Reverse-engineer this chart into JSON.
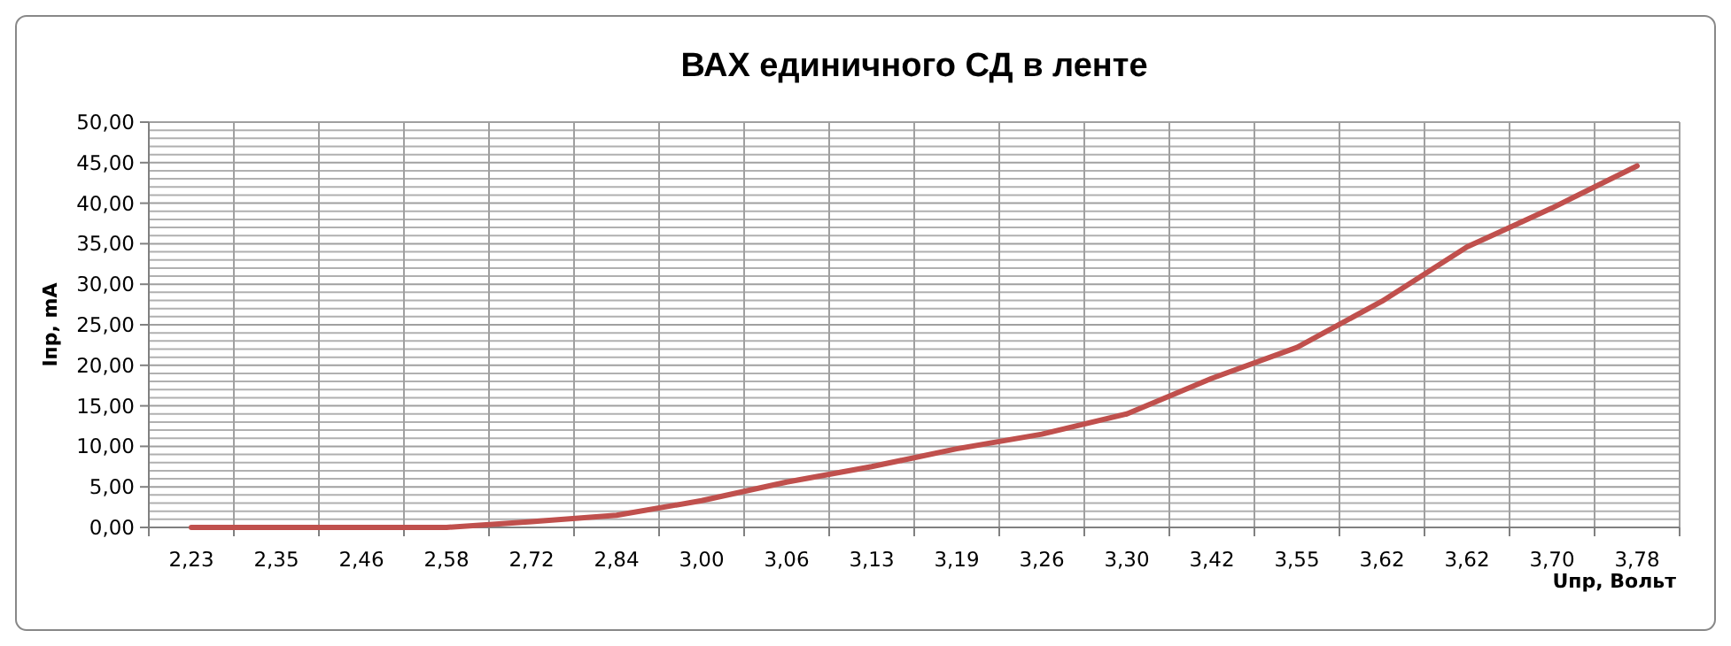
{
  "chart_data": {
    "type": "line",
    "title": "ВАХ единичного СД в ленте",
    "xlabel": "Uпр, Вольт",
    "ylabel": "Iпр, mA",
    "categories": [
      "2,23",
      "2,35",
      "2,46",
      "2,58",
      "2,72",
      "2,84",
      "3,00",
      "3,06",
      "3,13",
      "3,19",
      "3,26",
      "3,30",
      "3,42",
      "3,55",
      "3,62",
      "3,62",
      "3,70",
      "3,78"
    ],
    "series": [
      {
        "color": "#c0504d",
        "values": [
          0,
          0,
          0,
          0,
          0.7,
          1.5,
          3.3,
          5.6,
          7.5,
          9.7,
          11.5,
          14.0,
          18.4,
          22.2,
          27.9,
          34.6,
          39.4,
          44.6
        ]
      }
    ],
    "ylim": [
      0,
      50
    ],
    "yticks": [
      {
        "value": 0,
        "label": "0,00"
      },
      {
        "value": 5,
        "label": "5,00"
      },
      {
        "value": 10,
        "label": "10,00"
      },
      {
        "value": 15,
        "label": "15,00"
      },
      {
        "value": 20,
        "label": "20,00"
      },
      {
        "value": 25,
        "label": "25,00"
      },
      {
        "value": 30,
        "label": "30,00"
      },
      {
        "value": 35,
        "label": "35,00"
      },
      {
        "value": 40,
        "label": "40,00"
      },
      {
        "value": 45,
        "label": "45,00"
      },
      {
        "value": 50,
        "label": "50,00"
      }
    ],
    "grid": true,
    "marker": "none",
    "line_style": "solid"
  }
}
